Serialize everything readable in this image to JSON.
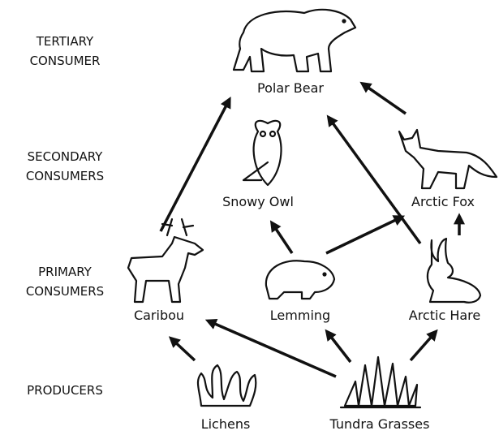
{
  "levels": [
    {
      "lines": [
        "TERTIARY",
        "CONSUMER"
      ]
    },
    {
      "lines": [
        "SECONDARY",
        "CONSUMERS"
      ]
    },
    {
      "lines": [
        "PRIMARY",
        "CONSUMERS"
      ]
    },
    {
      "lines": [
        "PRODUCERS"
      ]
    }
  ],
  "nodes": [
    {
      "label": "Polar Bear"
    },
    {
      "label": "Snowy Owl"
    },
    {
      "label": "Arctic Fox"
    },
    {
      "label": "Caribou"
    },
    {
      "label": "Lemming"
    },
    {
      "label": "Arctic Hare"
    },
    {
      "label": "Lichens"
    },
    {
      "label": "Tundra Grasses"
    }
  ]
}
